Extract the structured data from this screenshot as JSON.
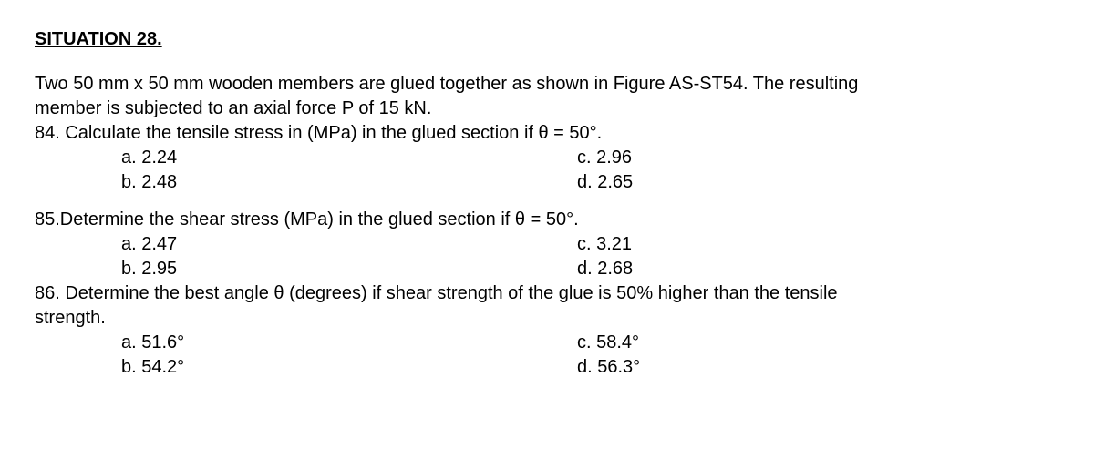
{
  "situation": {
    "title": "SITUATION 28.",
    "intro_line1": "Two 50 mm x 50 mm wooden members are glued together as shown in Figure AS-ST54. The resulting",
    "intro_line2": "member is subjected to an axial force P of 15 kN."
  },
  "q84": {
    "text": "84. Calculate the tensile stress in (MPa) in the glued section if θ = 50°.",
    "a": "a.  2.24",
    "b": "b.  2.48",
    "c": "c. 2.96",
    "d": "d. 2.65"
  },
  "q85": {
    "text": "85.Determine the shear stress (MPa) in the glued section if θ = 50°.",
    "a": "a.  2.47",
    "b": "b.  2.95",
    "c": "c.  3.21",
    "d": "d. 2.68"
  },
  "q86": {
    "line1": "86. Determine the best angle θ (degrees) if shear strength of the glue is 50% higher than the tensile",
    "line2": "strength.",
    "a": "a.  51.6°",
    "b": "b.  54.2°",
    "c": "c.  58.4°",
    "d": "d. 56.3°"
  }
}
